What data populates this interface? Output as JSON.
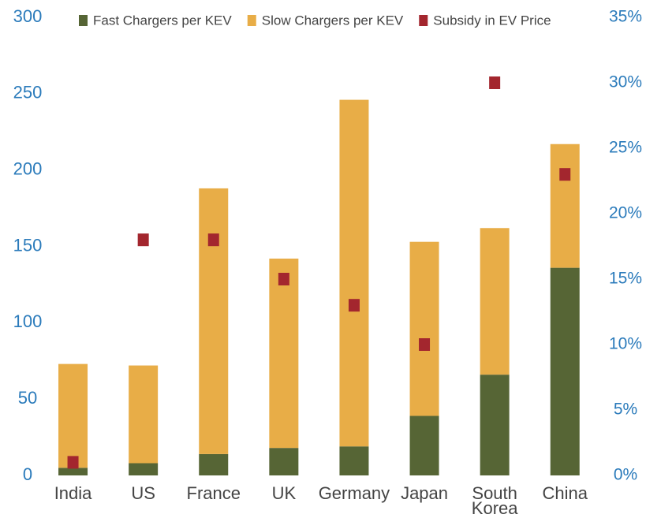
{
  "chart_data": {
    "type": "bar",
    "stacked": true,
    "categories": [
      "India",
      "US",
      "France",
      "UK",
      "Germany",
      "Japan",
      "South Korea",
      "China"
    ],
    "series": [
      {
        "name": "Fast Chargers per KEV",
        "color": "#566535",
        "values": [
          5,
          8,
          14,
          18,
          19,
          39,
          66,
          136
        ]
      },
      {
        "name": "Slow Chargers per KEV",
        "color": "#e8ad47",
        "values": [
          68,
          64,
          174,
          124,
          227,
          114,
          96,
          81
        ]
      },
      {
        "name": "Subsidy in EV Price",
        "color": "#a3262e",
        "type": "scatter",
        "axis": "y2",
        "values": [
          1,
          18,
          18,
          15,
          13,
          10,
          30,
          23
        ]
      }
    ],
    "ylim": [
      0,
      300
    ],
    "yticks": [
      0,
      50,
      100,
      150,
      200,
      250,
      300
    ],
    "y2lim": [
      0,
      35
    ],
    "y2ticks": [
      {
        "value": 0,
        "label": "0%"
      },
      {
        "value": 5,
        "label": "5%"
      },
      {
        "value": 10,
        "label": "10%"
      },
      {
        "value": 15,
        "label": "15%"
      },
      {
        "value": 20,
        "label": "20%"
      },
      {
        "value": 25,
        "label": "25%"
      },
      {
        "value": 30,
        "label": "30%"
      },
      {
        "value": 35,
        "label": "35%"
      }
    ],
    "legend": "top"
  }
}
